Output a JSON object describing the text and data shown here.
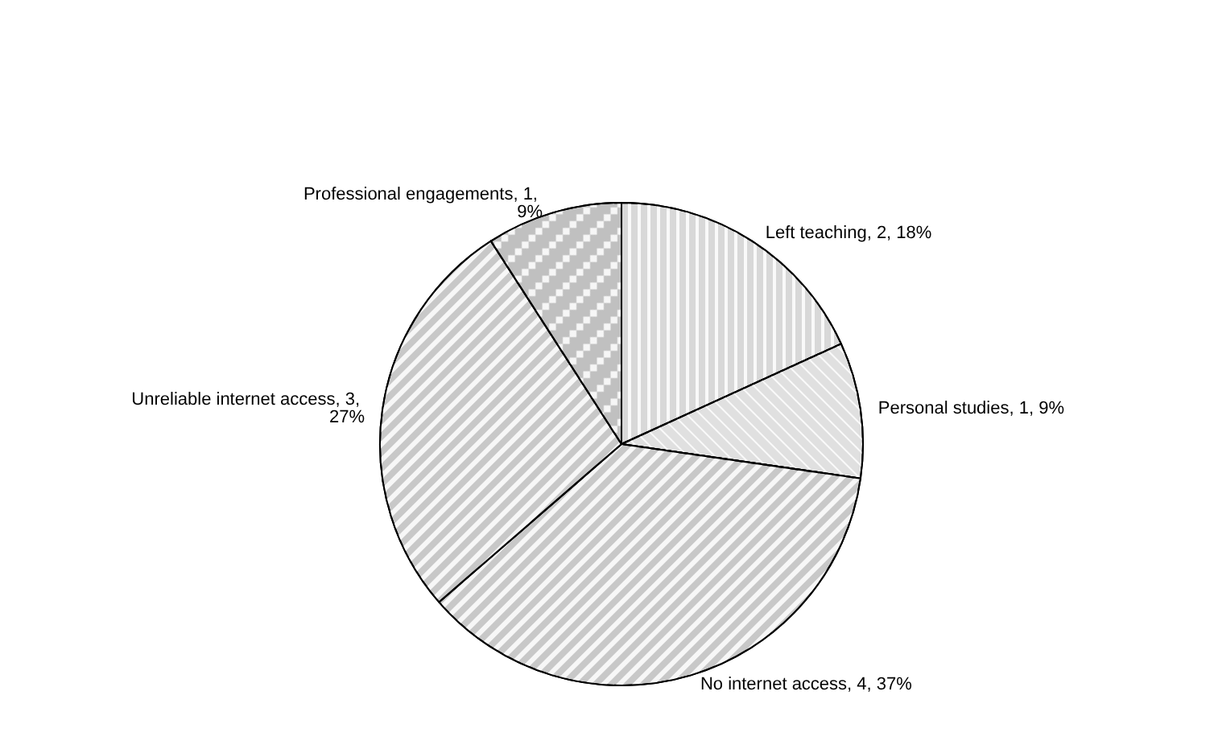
{
  "chart_data": {
    "type": "pie",
    "categories": [
      "Left teaching",
      "Personal studies",
      "No internet access",
      "Unreliable internet access",
      "Professional engagements"
    ],
    "values": [
      2,
      1,
      4,
      3,
      1
    ],
    "value_labels": [
      "2, 18%",
      "1, 9%",
      "4, 37%",
      "3, 27%",
      "1, 9%"
    ],
    "colors": [
      "#d8d8d8",
      "#e0e0e0",
      "#c8c8c8",
      "#c8c8c8",
      "#c0c0c0"
    ],
    "legend": false
  }
}
